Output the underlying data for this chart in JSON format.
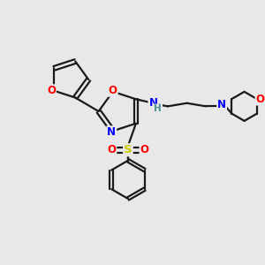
{
  "bg_color": "#e8e8e8",
  "bond_color": "#1a1a1a",
  "atom_colors": {
    "O": "#ff0000",
    "N": "#0000ff",
    "S": "#cccc00",
    "H": "#4a9090",
    "C": "#1a1a1a"
  },
  "figsize": [
    3.0,
    3.0
  ],
  "dpi": 100
}
